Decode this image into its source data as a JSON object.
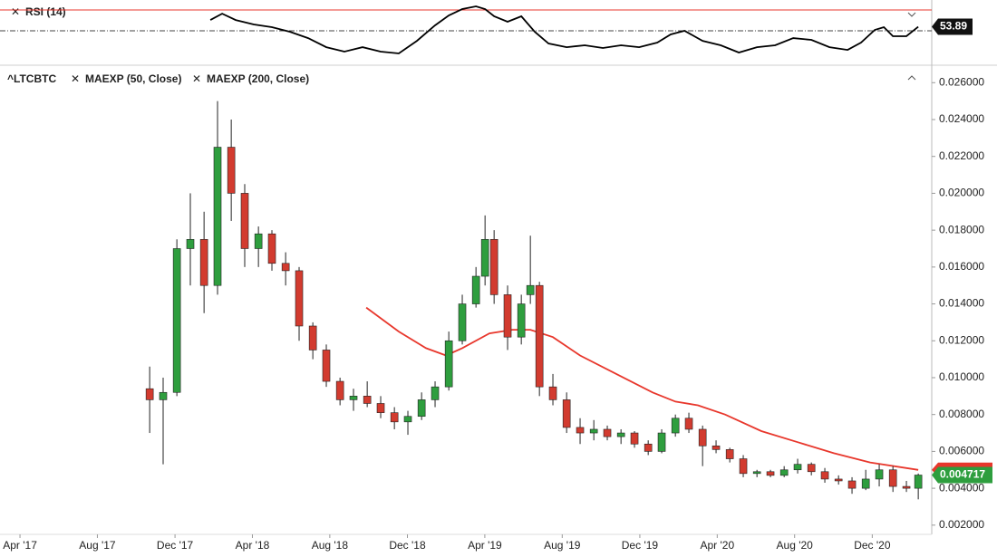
{
  "chart_data": [
    {
      "type": "line",
      "title": "RSI (14)",
      "color": "#000000",
      "xlim": [
        2017.164,
        2021.173
      ],
      "ylim": [
        18.7,
        79.6
      ],
      "reference_lines": [
        {
          "value": 70,
          "color": "#e8372c",
          "style": "solid"
        },
        {
          "value": 50,
          "color": "#444444",
          "style": "dashdot"
        }
      ],
      "x": [
        2018.069,
        2018.12,
        2018.178,
        2018.256,
        2018.334,
        2018.412,
        2018.49,
        2018.568,
        2018.646,
        2018.724,
        2018.802,
        2018.88,
        2018.958,
        2019.036,
        2019.095,
        2019.153,
        2019.212,
        2019.251,
        2019.29,
        2019.348,
        2019.407,
        2019.465,
        2019.524,
        2019.602,
        2019.68,
        2019.758,
        2019.836,
        2019.914,
        2019.992,
        2020.05,
        2020.109,
        2020.187,
        2020.265,
        2020.343,
        2020.421,
        2020.499,
        2020.577,
        2020.655,
        2020.733,
        2020.811,
        2020.869,
        2020.928,
        2020.967,
        2021.006,
        2021.064,
        2021.115
      ],
      "values": [
        60.4,
        66.5,
        60.4,
        56.1,
        53.5,
        49.1,
        43.0,
        34.3,
        30.0,
        34.3,
        30.0,
        28.3,
        40.4,
        55.2,
        64.8,
        70.9,
        73.5,
        70.9,
        63.9,
        58.7,
        63.9,
        49.1,
        37.8,
        34.3,
        36.1,
        33.5,
        36.1,
        34.3,
        38.7,
        46.5,
        50.0,
        40.4,
        36.1,
        29.1,
        34.3,
        36.1,
        43.0,
        41.3,
        34.3,
        31.7,
        38.7,
        50.9,
        53.5,
        44.8,
        44.8,
        53.89
      ]
    },
    {
      "type": "candlestick",
      "title": "^LTCBTC",
      "up_color": "#2e9e3e",
      "down_color": "#d23b2f",
      "xlim": [
        2017.164,
        2021.173
      ],
      "ylim": [
        0.0015,
        0.0268
      ],
      "xticks": [
        {
          "value": 2017.25,
          "label": "Apr '17"
        },
        {
          "value": 2017.583,
          "label": "Aug '17"
        },
        {
          "value": 2017.917,
          "label": "Dec '17"
        },
        {
          "value": 2018.25,
          "label": "Apr '18"
        },
        {
          "value": 2018.583,
          "label": "Aug '18"
        },
        {
          "value": 2018.917,
          "label": "Dec '18"
        },
        {
          "value": 2019.25,
          "label": "Apr '19"
        },
        {
          "value": 2019.583,
          "label": "Aug '19"
        },
        {
          "value": 2019.917,
          "label": "Dec '19"
        },
        {
          "value": 2020.25,
          "label": "Apr '20"
        },
        {
          "value": 2020.583,
          "label": "Aug '20"
        },
        {
          "value": 2020.917,
          "label": "Dec '20"
        }
      ],
      "yticks": [
        {
          "value": 0.002,
          "label": "0.002000"
        },
        {
          "value": 0.004,
          "label": "0.004000"
        },
        {
          "value": 0.006,
          "label": "0.006000"
        },
        {
          "value": 0.008,
          "label": "0.008000"
        },
        {
          "value": 0.01,
          "label": "0.010000"
        },
        {
          "value": 0.012,
          "label": "0.012000"
        },
        {
          "value": 0.014,
          "label": "0.014000"
        },
        {
          "value": 0.016,
          "label": "0.016000"
        },
        {
          "value": 0.018,
          "label": "0.018000"
        },
        {
          "value": 0.02,
          "label": "0.020000"
        },
        {
          "value": 0.022,
          "label": "0.022000"
        },
        {
          "value": 0.024,
          "label": "0.024000"
        },
        {
          "value": 0.026,
          "label": "0.026000"
        }
      ],
      "x": [
        2017.808,
        2017.866,
        2017.925,
        2017.983,
        2018.042,
        2018.1,
        2018.159,
        2018.217,
        2018.276,
        2018.334,
        2018.393,
        2018.451,
        2018.51,
        2018.568,
        2018.627,
        2018.685,
        2018.744,
        2018.802,
        2018.861,
        2018.919,
        2018.978,
        2019.036,
        2019.095,
        2019.153,
        2019.212,
        2019.251,
        2019.29,
        2019.348,
        2019.407,
        2019.446,
        2019.485,
        2019.543,
        2019.602,
        2019.66,
        2019.719,
        2019.777,
        2019.836,
        2019.894,
        2019.953,
        2020.011,
        2020.07,
        2020.128,
        2020.187,
        2020.245,
        2020.304,
        2020.362,
        2020.421,
        2020.479,
        2020.538,
        2020.596,
        2020.655,
        2020.713,
        2020.772,
        2020.83,
        2020.889,
        2020.947,
        2021.006,
        2021.064,
        2021.115
      ],
      "open": [
        0.0094,
        0.0088,
        0.0092,
        0.017,
        0.0175,
        0.015,
        0.0225,
        0.02,
        0.017,
        0.0178,
        0.0162,
        0.0158,
        0.0128,
        0.0115,
        0.0098,
        0.0088,
        0.009,
        0.0086,
        0.0081,
        0.0076,
        0.0079,
        0.0088,
        0.0095,
        0.012,
        0.014,
        0.0155,
        0.0175,
        0.0145,
        0.0122,
        0.0145,
        0.015,
        0.0095,
        0.0088,
        0.0073,
        0.007,
        0.0072,
        0.0068,
        0.007,
        0.0064,
        0.006,
        0.007,
        0.0078,
        0.0072,
        0.0063,
        0.0061,
        0.0056,
        0.0048,
        0.0049,
        0.0047,
        0.005,
        0.0053,
        0.0049,
        0.0045,
        0.0044,
        0.004,
        0.0045,
        0.005,
        0.0041,
        0.004
      ],
      "high": [
        0.0106,
        0.01,
        0.0175,
        0.02,
        0.019,
        0.025,
        0.024,
        0.0205,
        0.0182,
        0.018,
        0.0168,
        0.016,
        0.013,
        0.0118,
        0.01,
        0.0094,
        0.0098,
        0.009,
        0.0084,
        0.0082,
        0.0092,
        0.0098,
        0.0125,
        0.0145,
        0.016,
        0.0188,
        0.018,
        0.015,
        0.0145,
        0.0177,
        0.0152,
        0.0102,
        0.0092,
        0.0078,
        0.0077,
        0.0074,
        0.0072,
        0.0071,
        0.0066,
        0.0072,
        0.008,
        0.0081,
        0.0074,
        0.0066,
        0.0062,
        0.0058,
        0.005,
        0.005,
        0.0052,
        0.0056,
        0.0054,
        0.0051,
        0.0047,
        0.0046,
        0.005,
        0.0053,
        0.0052,
        0.0044,
        0.0048
      ],
      "low": [
        0.007,
        0.0053,
        0.009,
        0.015,
        0.0135,
        0.0145,
        0.0185,
        0.016,
        0.016,
        0.0158,
        0.015,
        0.012,
        0.011,
        0.0095,
        0.0085,
        0.0082,
        0.0084,
        0.0078,
        0.0072,
        0.0069,
        0.0077,
        0.0084,
        0.0093,
        0.0118,
        0.0138,
        0.015,
        0.014,
        0.0115,
        0.0118,
        0.014,
        0.009,
        0.0085,
        0.007,
        0.0064,
        0.0066,
        0.0066,
        0.0064,
        0.0062,
        0.0058,
        0.0059,
        0.0068,
        0.007,
        0.0052,
        0.0059,
        0.0054,
        0.0046,
        0.0046,
        0.0046,
        0.0046,
        0.0048,
        0.0047,
        0.0043,
        0.0042,
        0.0037,
        0.0039,
        0.0041,
        0.0038,
        0.0038,
        0.0034
      ],
      "close": [
        0.0088,
        0.0092,
        0.017,
        0.0175,
        0.015,
        0.0225,
        0.02,
        0.017,
        0.0178,
        0.0162,
        0.0158,
        0.0128,
        0.0115,
        0.0098,
        0.0088,
        0.009,
        0.0086,
        0.0081,
        0.0076,
        0.0079,
        0.0088,
        0.0095,
        0.012,
        0.014,
        0.0155,
        0.0175,
        0.0145,
        0.0122,
        0.014,
        0.015,
        0.0095,
        0.0088,
        0.0073,
        0.007,
        0.0072,
        0.0068,
        0.007,
        0.0064,
        0.006,
        0.007,
        0.0078,
        0.0072,
        0.0063,
        0.0061,
        0.0056,
        0.0048,
        0.0049,
        0.0047,
        0.005,
        0.0053,
        0.0049,
        0.0045,
        0.0044,
        0.004,
        0.0045,
        0.005,
        0.0041,
        0.004,
        0.004717
      ],
      "overlays": [
        {
          "name": "MAEXP (50, Close)",
          "color": "#e8372c",
          "x": [
            2018.74,
            2018.88,
            2018.997,
            2019.083,
            2019.153,
            2019.27,
            2019.368,
            2019.446,
            2019.543,
            2019.66,
            2019.816,
            2019.972,
            2020.07,
            2020.167,
            2020.284,
            2020.44,
            2020.596,
            2020.752,
            2020.908,
            2021.115
          ],
          "values": [
            0.0138,
            0.0125,
            0.0116,
            0.0112,
            0.0116,
            0.0124,
            0.0126,
            0.0126,
            0.0122,
            0.0112,
            0.0102,
            0.0092,
            0.0087,
            0.0085,
            0.008,
            0.0071,
            0.0065,
            0.0059,
            0.0054,
            0.005
          ]
        },
        {
          "name": "MAEXP (200, Close)"
        }
      ]
    }
  ]
}
